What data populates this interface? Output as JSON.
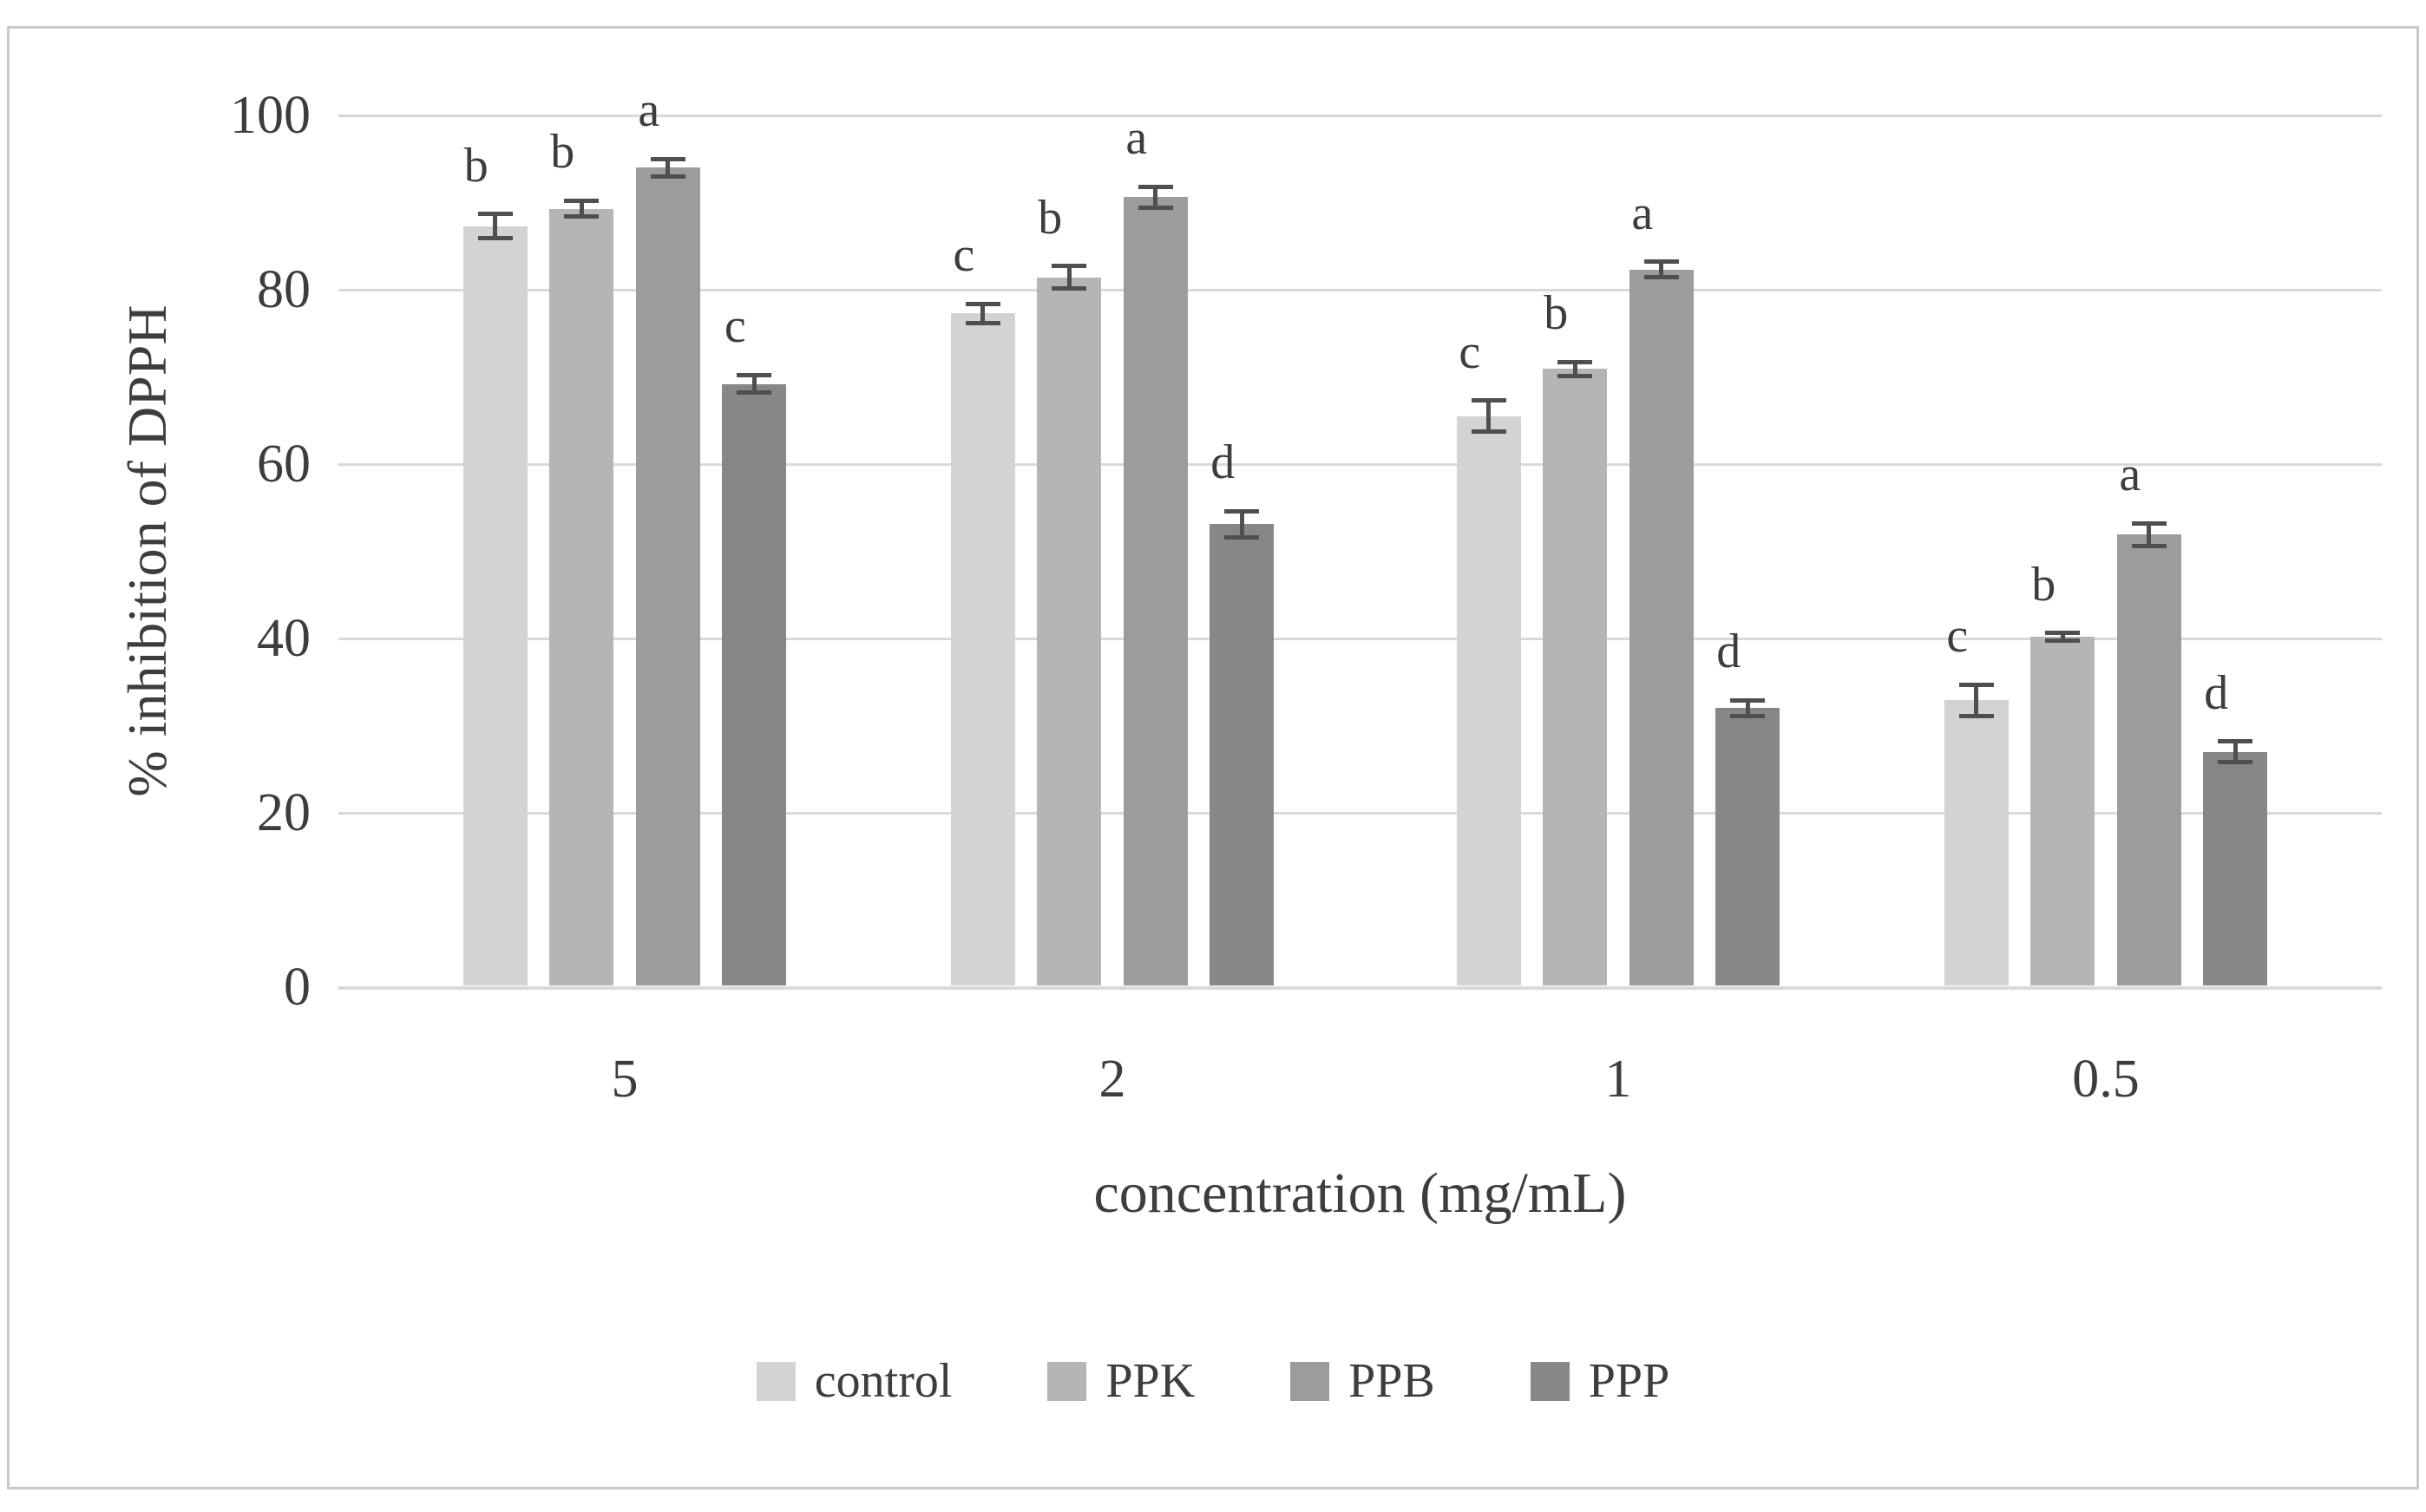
{
  "figure": {
    "background_color": "#ffffff",
    "border_color": "#c9c9c9",
    "gridline_color": "#d9d9d9",
    "text_color": "#3d3d3d",
    "error_bar_color": "#4f4f4f"
  },
  "chart_data": {
    "type": "bar",
    "title": "",
    "xlabel": "concentration (mg/mL)",
    "ylabel": "% inhibition of DPPH",
    "categories": [
      "5",
      "2",
      "1",
      "0.5"
    ],
    "series": [
      {
        "name": "control",
        "color": "#d3d3d3",
        "values": [
          87.3,
          77.3,
          65.5,
          32.9
        ],
        "errors": [
          1.4,
          1.1,
          1.8,
          1.8
        ],
        "letters": [
          "b",
          "c",
          "c",
          "c"
        ]
      },
      {
        "name": "PPK",
        "color": "#b5b5b5",
        "values": [
          89.3,
          81.4,
          70.9,
          40.2
        ],
        "errors": [
          0.9,
          1.3,
          0.8,
          0.4
        ],
        "letters": [
          "b",
          "b",
          "b",
          "b"
        ]
      },
      {
        "name": "PPB",
        "color": "#9c9c9c",
        "values": [
          94.0,
          90.6,
          82.3,
          51.9
        ],
        "errors": [
          1.0,
          1.2,
          0.9,
          1.3
        ],
        "letters": [
          "a",
          "a",
          "a",
          "a"
        ]
      },
      {
        "name": "PPP",
        "color": "#878787",
        "values": [
          69.2,
          53.1,
          32.0,
          27.0
        ],
        "errors": [
          1.0,
          1.5,
          0.9,
          1.2
        ],
        "letters": [
          "c",
          "d",
          "d",
          "d"
        ]
      }
    ],
    "ylim": [
      0,
      100
    ],
    "yticks": [
      0,
      20,
      40,
      60,
      80,
      100
    ],
    "grid": true,
    "legend_position": "bottom",
    "error_bars": true,
    "annotations": "statistical significance letters above bars"
  }
}
